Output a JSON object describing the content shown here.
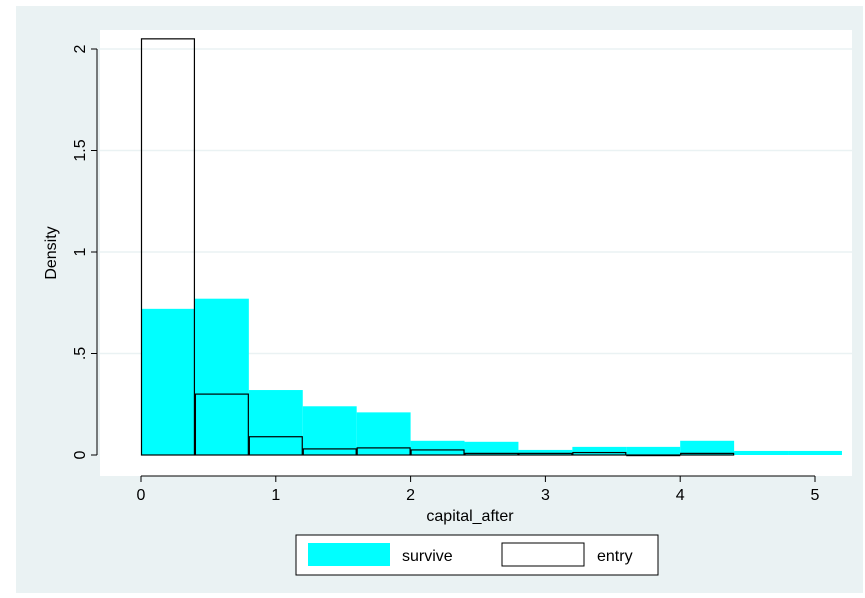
{
  "chart_data": {
    "type": "bar",
    "subtype": "overlaid-histogram",
    "xlabel": "capital_after",
    "ylabel": "Density",
    "xlim": [
      -0.3,
      5.3
    ],
    "ylim": [
      0,
      2.15
    ],
    "xticks": [
      0,
      1,
      2,
      3,
      4,
      5
    ],
    "xtick_labels": [
      "0",
      "1",
      "2",
      "3",
      "4",
      "5"
    ],
    "yticks": [
      0,
      0.5,
      1,
      1.5,
      2
    ],
    "ytick_labels": [
      "0",
      ".5",
      "1",
      "1.5",
      "2"
    ],
    "grid": true,
    "legend_position": "bottom",
    "colors": {
      "survive_fill": "#00ffff",
      "entry_outline": "#000000",
      "plot_bg": "#ffffff",
      "outer_bg": "#eaf2f3",
      "grid": "#eaf2f3"
    },
    "series": [
      {
        "name": "survive",
        "style": "filled",
        "bins": [
          {
            "x0": 0.0,
            "x1": 0.4,
            "y": 0.72
          },
          {
            "x0": 0.4,
            "x1": 0.8,
            "y": 0.77
          },
          {
            "x0": 0.8,
            "x1": 1.2,
            "y": 0.32
          },
          {
            "x0": 1.2,
            "x1": 1.6,
            "y": 0.24
          },
          {
            "x0": 1.6,
            "x1": 2.0,
            "y": 0.21
          },
          {
            "x0": 2.0,
            "x1": 2.4,
            "y": 0.07
          },
          {
            "x0": 2.4,
            "x1": 2.8,
            "y": 0.065
          },
          {
            "x0": 2.8,
            "x1": 3.2,
            "y": 0.025
          },
          {
            "x0": 3.2,
            "x1": 3.6,
            "y": 0.04
          },
          {
            "x0": 3.6,
            "x1": 4.0,
            "y": 0.04
          },
          {
            "x0": 4.0,
            "x1": 4.4,
            "y": 0.07
          },
          {
            "x0": 4.4,
            "x1": 4.8,
            "y": 0.02
          },
          {
            "x0": 4.8,
            "x1": 5.2,
            "y": 0.02
          }
        ]
      },
      {
        "name": "entry",
        "style": "outline",
        "bins": [
          {
            "x0": 0.0,
            "x1": 0.4,
            "y": 2.05
          },
          {
            "x0": 0.4,
            "x1": 0.8,
            "y": 0.3
          },
          {
            "x0": 0.8,
            "x1": 1.2,
            "y": 0.09
          },
          {
            "x0": 1.2,
            "x1": 1.6,
            "y": 0.03
          },
          {
            "x0": 1.6,
            "x1": 2.0,
            "y": 0.035
          },
          {
            "x0": 2.0,
            "x1": 2.4,
            "y": 0.025
          },
          {
            "x0": 2.4,
            "x1": 2.8,
            "y": 0.008
          },
          {
            "x0": 2.8,
            "x1": 3.2,
            "y": 0.008
          },
          {
            "x0": 3.2,
            "x1": 3.6,
            "y": 0.012
          },
          {
            "x0": 3.6,
            "x1": 4.0,
            "y": 0.0
          },
          {
            "x0": 4.0,
            "x1": 4.4,
            "y": 0.008
          }
        ]
      }
    ]
  }
}
